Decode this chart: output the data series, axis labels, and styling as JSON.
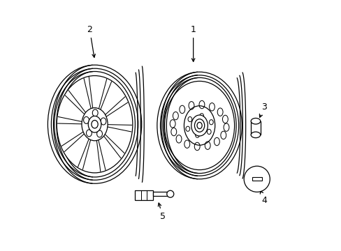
{
  "bg_color": "#ffffff",
  "line_color": "#000000",
  "line_width": 0.9
}
